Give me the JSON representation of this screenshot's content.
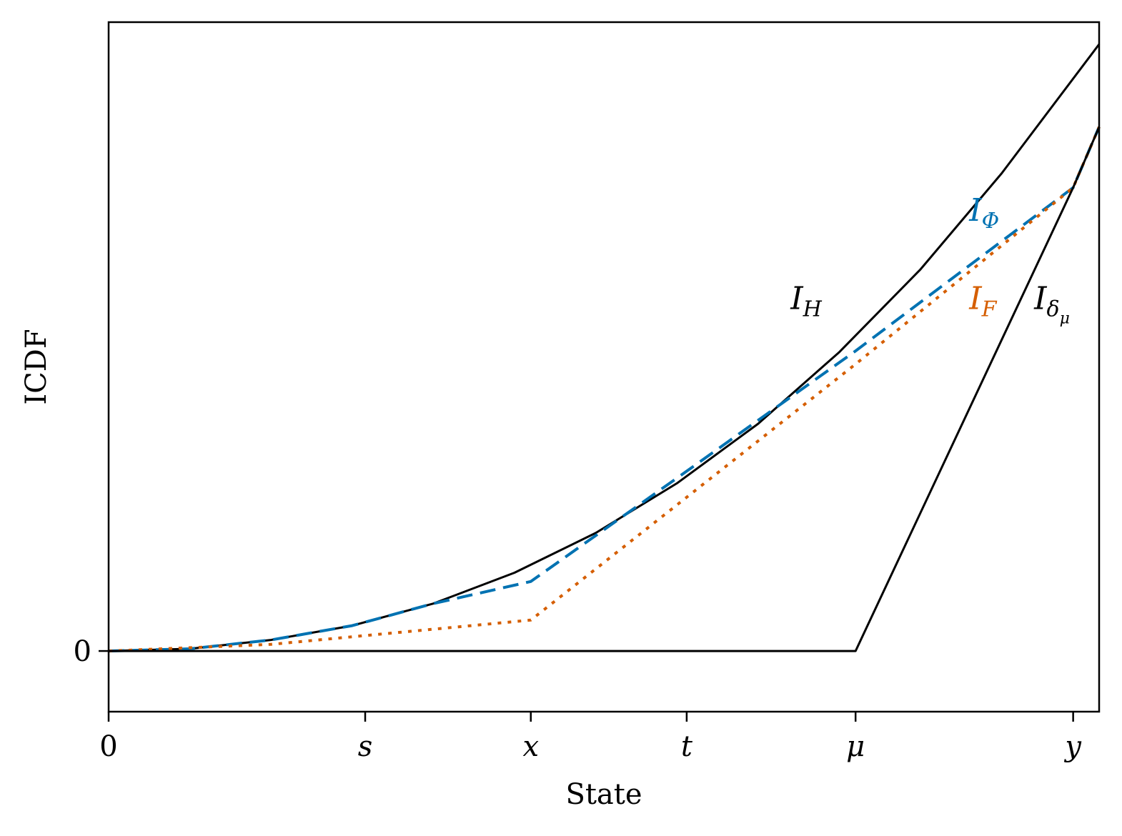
{
  "chart_data": {
    "type": "line",
    "xlabel": "State",
    "ylabel": "ICDF",
    "xlim": [
      0,
      6.1
    ],
    "ylim": [
      -0.55,
      5.7
    ],
    "grid": false,
    "xticks": [
      {
        "value": 0,
        "label": "0",
        "italic": false
      },
      {
        "value": 1.58,
        "label": "s",
        "italic": true
      },
      {
        "value": 2.6,
        "label": "x",
        "italic": true
      },
      {
        "value": 3.56,
        "label": "t",
        "italic": true
      },
      {
        "value": 4.6,
        "label": "μ",
        "italic": true
      },
      {
        "value": 5.94,
        "label": "y",
        "italic": true
      }
    ],
    "yticks": [
      {
        "value": 0,
        "label": "0"
      }
    ],
    "series": [
      {
        "label_main": "I",
        "label_sub": "H",
        "color": "#000000",
        "dash": "solid",
        "x": [
          0,
          0.5,
          1.0,
          1.5,
          2.0,
          2.5,
          3.0,
          3.5,
          4.0,
          4.5,
          5.0,
          5.5,
          6.1
        ],
        "y": [
          0,
          0.02,
          0.1,
          0.23,
          0.43,
          0.71,
          1.07,
          1.52,
          2.06,
          2.71,
          3.46,
          4.33,
          5.5
        ]
      },
      {
        "label_main": "I",
        "label_sub": "Φ",
        "color": "#0072b2",
        "dash": "dashed",
        "x": [
          0,
          0.5,
          1.0,
          1.5,
          2.0,
          2.6,
          3.56,
          4.6,
          5.94,
          6.1
        ],
        "y": [
          0,
          0.02,
          0.1,
          0.23,
          0.43,
          0.63,
          1.63,
          2.72,
          4.2,
          4.75
        ]
      },
      {
        "label_main": "I",
        "label_sub": "F",
        "color": "#d55e00",
        "dash": "dotted",
        "x": [
          0,
          1.0,
          2.6,
          4.6,
          5.94,
          6.1
        ],
        "y": [
          0,
          0.06,
          0.28,
          2.6,
          4.2,
          4.75
        ]
      },
      {
        "label_main": "I",
        "label_sub": "δ",
        "label_subsub": "μ",
        "color": "#000000",
        "dash": "solid",
        "x": [
          0,
          4.6,
          5.94,
          6.1
        ],
        "y": [
          0,
          0,
          4.2,
          4.75
        ]
      }
    ],
    "annotations": [
      {
        "series": 0,
        "x": 4.2,
        "y": 3.1
      },
      {
        "series": 1,
        "x": 5.3,
        "y": 3.9
      },
      {
        "series": 2,
        "x": 5.3,
        "y": 3.1
      },
      {
        "series": 3,
        "x": 5.7,
        "y": 3.1
      }
    ]
  }
}
